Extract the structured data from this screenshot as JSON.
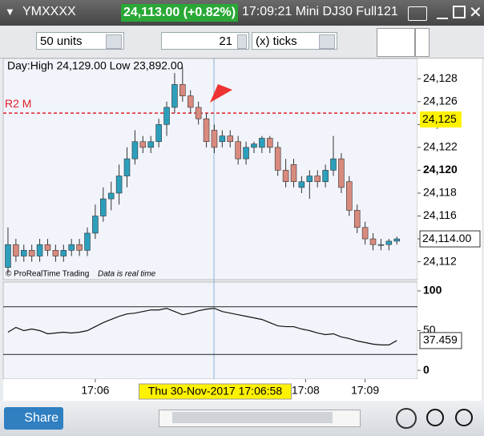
{
  "toolbar": {
    "symbol": "YMXXXX",
    "quote": "24,113.00 (+0.82%)",
    "info": "17:09:21 Mini DJ30 Full121",
    "units": "50 units",
    "ticks_count": "21",
    "ticks_mode": "(x) ticks"
  },
  "bottom_bar": {
    "share": "Share"
  },
  "chart_data": [
    {
      "type": "candlestick",
      "subtitle": "Day:High 24,129.00 Low 23,892.00",
      "footer": "© ProRealTime Trading",
      "footer_note": "Data is real time",
      "up_color": "#2c9fbd",
      "down_color": "#d98a7e",
      "open": [
        24111.5,
        24113.5,
        24112.5,
        24113,
        24112.5,
        24113.5,
        24113,
        24112.5,
        24113,
        24113.5,
        24113,
        24114.5,
        24116,
        24117.5,
        24118,
        24119.5,
        24121,
        24122.5,
        24122,
        24122.5,
        24124,
        24125.5,
        24127.5,
        24126.5,
        24125.5,
        24124.5,
        24123.5,
        24122.5,
        24123,
        24122.5,
        24121,
        24122,
        24122,
        24122.8,
        24122,
        24120,
        24120.5,
        24118.5,
        24119,
        24119.5,
        24119,
        24120,
        24121,
        24119,
        24116.5,
        24115,
        24114,
        24113.5,
        24113.5,
        24113.8
      ],
      "high": [
        24115,
        24114,
        24113.5,
        24113.5,
        24114,
        24114,
        24113.5,
        24113.5,
        24114,
        24114,
        24115,
        24117,
        24118.5,
        24119,
        24120.5,
        24122,
        24123.5,
        24123,
        24123,
        24124.5,
        24126,
        24128.5,
        24129,
        24127,
        24126,
        24125,
        24124,
        24123.5,
        24123.5,
        24123,
        24122.5,
        24122.5,
        24123,
        24123,
        24122.5,
        24121,
        24121,
        24119.5,
        24120,
        24120,
        24120.5,
        24123,
        24121.5,
        24119.5,
        24117,
        24115.5,
        24114.5,
        24114,
        24114,
        24114.2
      ],
      "low": [
        24111,
        24112,
        24112,
        24112,
        24112,
        24112.5,
        24112,
        24112,
        24112.5,
        24112.5,
        24112.5,
        24114,
        24115.5,
        24116.5,
        24117,
        24118.5,
        24120.5,
        24121.5,
        24121.5,
        24122,
        24123,
        24125,
        24126,
        24125,
        24124,
        24122,
        24121.5,
        24122,
        24122,
        24120.5,
        24120.5,
        24121.5,
        24121.5,
        24121.5,
        24119.5,
        24118.5,
        24118.5,
        24118,
        24117.5,
        24118.5,
        24118.5,
        24119.5,
        24118,
        24116,
        24114.5,
        24113.5,
        24113,
        24113,
        24113,
        24113.5
      ],
      "close": [
        24113.5,
        24112.5,
        24113,
        24112.5,
        24113.5,
        24113,
        24112.5,
        24113,
        24113.5,
        24113,
        24114.5,
        24116,
        24117.5,
        24118,
        24119.5,
        24121,
        24122.5,
        24122,
        24122.5,
        24124,
        24125.5,
        24127.5,
        24126.5,
        24125.5,
        24124.5,
        24122.5,
        24122,
        24123,
        24122.5,
        24121,
        24122,
        24122.3,
        24122.8,
        24122,
        24120,
        24119,
        24119,
        24119,
        24119.5,
        24119,
        24120,
        24121,
        24118.5,
        24116.5,
        24115,
        24114,
        24113.5,
        24113.5,
        24113.8,
        24114
      ],
      "xlim": [
        -0.5,
        51.5
      ],
      "xticks": [
        {
          "value": 11,
          "label": "17:06"
        },
        {
          "value": 37.5,
          "label": "17:08"
        },
        {
          "value": 45,
          "label": "17:09"
        }
      ],
      "crosshair": {
        "value": 26,
        "label": "Thu 30-Nov-2017 17:06:58"
      },
      "ylim": [
        24110.5,
        24129.7
      ],
      "yticks": [
        {
          "value": 24112,
          "label": "24,112"
        },
        {
          "value": 24114,
          "label": "24,114"
        },
        {
          "value": 24116,
          "label": "24,116"
        },
        {
          "value": 24118,
          "label": "24,118"
        },
        {
          "value": 24120,
          "label": "24,120"
        },
        {
          "value": 24122,
          "label": "24,122"
        },
        {
          "value": 24124,
          "label": "24,124"
        },
        {
          "value": 24126,
          "label": "24,126"
        },
        {
          "value": 24128,
          "label": "24,128"
        }
      ],
      "reference_line": {
        "name": "R2 M",
        "value": 24125,
        "label": "24,125",
        "color": "#e0202a"
      },
      "last_value": {
        "value": 24114,
        "label": "24,114.00"
      }
    },
    {
      "type": "line",
      "color": "#111111",
      "values": [
        48,
        54,
        50,
        52,
        50,
        46,
        47,
        48,
        47,
        48,
        50,
        55,
        60,
        64,
        68,
        71,
        72,
        74,
        76,
        76,
        78,
        74,
        70,
        72,
        75,
        77,
        78,
        74,
        72,
        70,
        68,
        66,
        64,
        60,
        56,
        55,
        55,
        52,
        50,
        47,
        45,
        46,
        42,
        40,
        37,
        35,
        33,
        32,
        32,
        37.459
      ],
      "xlim": [
        -0.5,
        51.5
      ],
      "ylim": [
        -10,
        110
      ],
      "yticks": [
        0,
        50,
        100
      ],
      "levels": [
        20,
        80
      ],
      "last_value": 37.459
    }
  ]
}
